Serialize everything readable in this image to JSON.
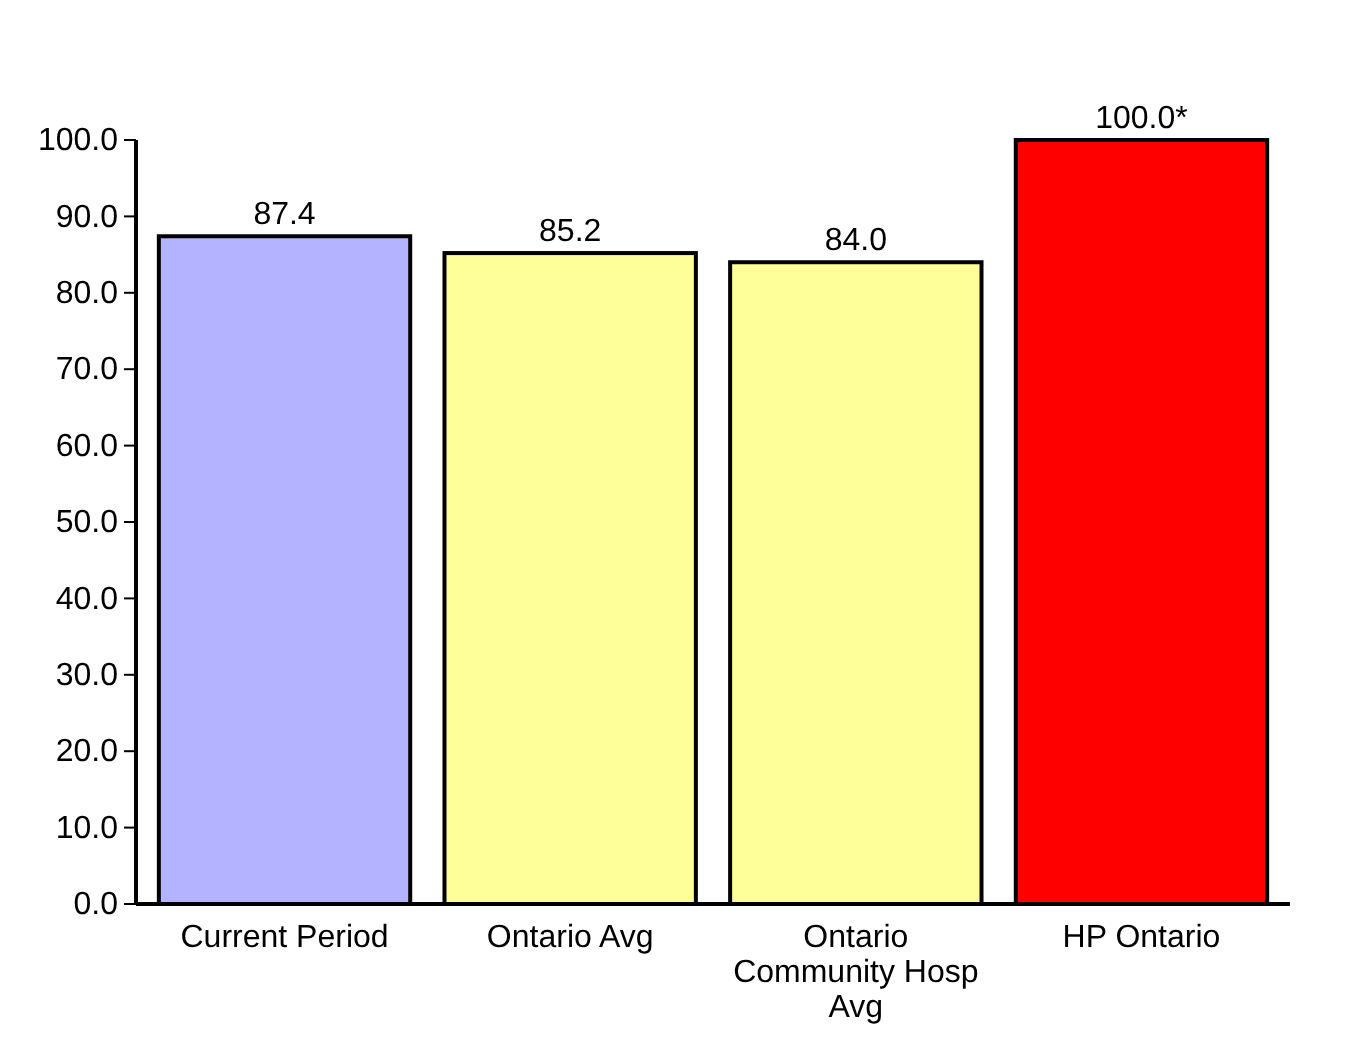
{
  "chart_data": {
    "type": "bar",
    "categories": [
      "Current Period",
      "Ontario Avg",
      "Ontario Community Hosp Avg",
      "HP Ontario"
    ],
    "values": [
      87.4,
      85.2,
      84.0,
      100.0
    ],
    "colors": [
      "#b3b3ff",
      "#ffff99",
      "#ffff99",
      "#ff0000"
    ],
    "value_labels": [
      "87.4",
      "85.2",
      "84.0",
      "100.0*"
    ],
    "ylim": [
      0,
      100
    ],
    "yticks": [
      {
        "value": 0,
        "label": "0.0"
      },
      {
        "value": 10,
        "label": "10.0"
      },
      {
        "value": 20,
        "label": "20.0"
      },
      {
        "value": 30,
        "label": "30.0"
      },
      {
        "value": 40,
        "label": "40.0"
      },
      {
        "value": 50,
        "label": "50.0"
      },
      {
        "value": 60,
        "label": "60.0"
      },
      {
        "value": 70,
        "label": "70.0"
      },
      {
        "value": 80,
        "label": "80.0"
      },
      {
        "value": 90,
        "label": "90.0"
      },
      {
        "value": 100,
        "label": "100.0"
      }
    ],
    "grid": false
  }
}
